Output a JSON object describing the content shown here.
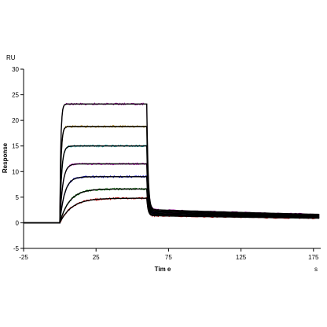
{
  "chart_data": {
    "type": "line",
    "title": "",
    "xlabel": "Tim e",
    "ylabel": "Response",
    "x_unit": "s",
    "y_unit": "RU",
    "xlim": [
      -25,
      180
    ],
    "ylim": [
      -5,
      30
    ],
    "x_ticks": [
      "-25",
      "25",
      "75",
      "125",
      "175"
    ],
    "y_ticks": [
      "-5",
      "0",
      "5",
      "10",
      "15",
      "20",
      "25",
      "30"
    ],
    "association_start": 0,
    "dissociation_start": 60,
    "baseline_start": -25,
    "grid": false,
    "legend": "none",
    "fit_color": "#000000",
    "series": [
      {
        "color": "#a000a0",
        "plateau": 23.2,
        "k": 1.5,
        "resid": 2.6
      },
      {
        "color": "#b08000",
        "plateau": 18.8,
        "k": 1.2,
        "resid": 2.4
      },
      {
        "color": "#00a0a0",
        "plateau": 15.0,
        "k": 0.8,
        "resid": 2.2
      },
      {
        "color": "#e000e0",
        "plateau": 11.5,
        "k": 0.5,
        "resid": 2.0
      },
      {
        "color": "#0000d0",
        "plateau": 9.0,
        "k": 0.3,
        "resid": 1.8
      },
      {
        "color": "#008000",
        "plateau": 6.6,
        "k": 0.15,
        "resid": 1.6
      },
      {
        "color": "#d00000",
        "plateau": 4.8,
        "k": 0.12,
        "resid": 1.4
      }
    ]
  }
}
